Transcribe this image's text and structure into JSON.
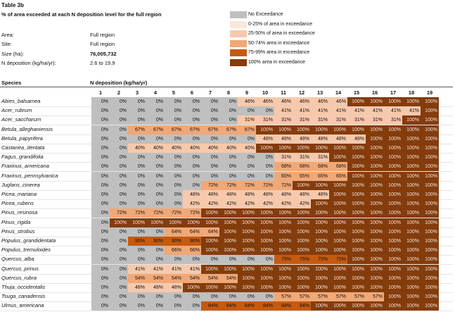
{
  "title": "Table 3b",
  "subtitle": "% of area  exceeded at each N deposition level for the full region",
  "info": [
    {
      "label": "Area:",
      "value": "Full region",
      "bold": false
    },
    {
      "label": "Site:",
      "value": "Full region",
      "bold": false
    },
    {
      "label": "Size (ha):",
      "value": "76,005,732",
      "bold": true
    },
    {
      "label": "N deposition  (kg/ha/yr):",
      "value": "2.6 to 19.9",
      "bold": false
    }
  ],
  "legend": [
    {
      "label": "No Exceedance",
      "color": "#bfbfbf"
    },
    {
      "label": "0-25% of area  in exceedance",
      "color": "#fbe6da"
    },
    {
      "label": "25-50% of area  in exceedance",
      "color": "#f7c9ac"
    },
    {
      "label": "50-74% area  in exceedance",
      "color": "#f0a877"
    },
    {
      "label": "75-99% area in exceedance",
      "color": "#c55a11"
    },
    {
      "label": "100% area  in exceedance",
      "color": "#843c0c"
    }
  ],
  "table": {
    "species_header": "Species",
    "ndep_header": "N deposition  (kg/ha/yr)",
    "columns": [
      "1",
      "2",
      "3",
      "4",
      "5",
      "6",
      "7",
      "8",
      "9",
      "10",
      "11",
      "12",
      "13",
      "14",
      "15",
      "16",
      "17",
      "18",
      "19"
    ],
    "rows": [
      {
        "species": "Abies_balsamea",
        "values": [
          0,
          0,
          0,
          0,
          0,
          0,
          0,
          0,
          46,
          46,
          46,
          46,
          46,
          46,
          100,
          100,
          100,
          100,
          100
        ]
      },
      {
        "species": "Acer_rubrum",
        "values": [
          0,
          0,
          0,
          0,
          0,
          0,
          0,
          0,
          0,
          0,
          41,
          41,
          41,
          41,
          41,
          41,
          41,
          41,
          100
        ]
      },
      {
        "species": "Acer_saccharum",
        "values": [
          0,
          0,
          0,
          0,
          0,
          0,
          0,
          0,
          31,
          31,
          31,
          31,
          31,
          31,
          31,
          31,
          31,
          100,
          100
        ]
      },
      {
        "species": "Betula_alleghaniensis",
        "values": [
          0,
          0,
          67,
          67,
          67,
          67,
          67,
          67,
          67,
          100,
          100,
          100,
          100,
          100,
          100,
          100,
          100,
          100,
          100
        ]
      },
      {
        "species": "Betula_papyrifera",
        "values": [
          0,
          0,
          0,
          0,
          0,
          0,
          0,
          0,
          0,
          48,
          48,
          48,
          48,
          48,
          48,
          100,
          100,
          100,
          100
        ]
      },
      {
        "species": "Castanea_dentata",
        "values": [
          0,
          0,
          40,
          40,
          40,
          40,
          40,
          40,
          40,
          100,
          100,
          100,
          100,
          100,
          100,
          100,
          100,
          100,
          100
        ]
      },
      {
        "species": "Fagus_grandifolia",
        "values": [
          0,
          0,
          0,
          0,
          0,
          0,
          0,
          0,
          0,
          0,
          31,
          31,
          31,
          100,
          100,
          100,
          100,
          100,
          100
        ]
      },
      {
        "species": "Fraxinus_americana",
        "values": [
          0,
          0,
          0,
          0,
          0,
          0,
          0,
          0,
          0,
          0,
          68,
          68,
          68,
          68,
          100,
          100,
          100,
          100,
          100
        ]
      },
      {
        "species": "Fraxinus_pennsylvanica",
        "values": [
          0,
          0,
          0,
          0,
          0,
          0,
          0,
          0,
          0,
          0,
          65,
          65,
          65,
          65,
          100,
          100,
          100,
          100,
          100
        ]
      },
      {
        "species": "Juglans_cinerea",
        "values": [
          0,
          0,
          0,
          0,
          0,
          0,
          72,
          72,
          72,
          72,
          72,
          100,
          100,
          100,
          100,
          100,
          100,
          100,
          100
        ]
      },
      {
        "species": "Picea_mariana",
        "values": [
          0,
          0,
          0,
          0,
          0,
          48,
          48,
          48,
          48,
          48,
          48,
          48,
          48,
          100,
          100,
          100,
          100,
          100,
          100
        ]
      },
      {
        "species": "Picea_rubens",
        "values": [
          0,
          0,
          0,
          0,
          0,
          42,
          42,
          42,
          42,
          42,
          42,
          42,
          100,
          100,
          100,
          100,
          100,
          100,
          100
        ]
      },
      {
        "species": "Pinus_resinosa",
        "values": [
          0,
          72,
          72,
          72,
          72,
          72,
          100,
          100,
          100,
          100,
          100,
          100,
          100,
          100,
          100,
          100,
          100,
          100,
          100
        ]
      },
      {
        "species": "Pinus_rigida",
        "values": [
          0,
          100,
          100,
          100,
          100,
          100,
          100,
          100,
          100,
          100,
          100,
          100,
          100,
          100,
          100,
          100,
          100,
          100,
          100
        ]
      },
      {
        "species": "Pinus_strobus",
        "values": [
          0,
          0,
          0,
          0,
          64,
          64,
          64,
          100,
          100,
          100,
          100,
          100,
          100,
          100,
          100,
          100,
          100,
          100,
          100
        ]
      },
      {
        "species": "Populus_grandidentata",
        "values": [
          0,
          0,
          90,
          90,
          90,
          90,
          100,
          100,
          100,
          100,
          100,
          100,
          100,
          100,
          100,
          100,
          100,
          100,
          100
        ]
      },
      {
        "species": "Populus_tremuloides",
        "values": [
          0,
          0,
          0,
          0,
          66,
          66,
          100,
          100,
          100,
          100,
          100,
          100,
          100,
          100,
          100,
          100,
          100,
          100,
          100
        ]
      },
      {
        "species": "Quercus_alba",
        "values": [
          0,
          0,
          0,
          0,
          0,
          0,
          0,
          0,
          0,
          0,
          75,
          75,
          75,
          75,
          100,
          100,
          100,
          100,
          100
        ]
      },
      {
        "species": "Quercus_prinus",
        "values": [
          0,
          0,
          41,
          41,
          41,
          41,
          100,
          100,
          100,
          100,
          100,
          100,
          100,
          100,
          100,
          100,
          100,
          100,
          100
        ]
      },
      {
        "species": "Quercus_rubra",
        "values": [
          0,
          0,
          54,
          54,
          54,
          54,
          54,
          54,
          100,
          100,
          100,
          100,
          100,
          100,
          100,
          100,
          100,
          100,
          100
        ]
      },
      {
        "species": "Thuja_occidentalis",
        "values": [
          0,
          0,
          48,
          48,
          48,
          100,
          100,
          100,
          100,
          100,
          100,
          100,
          100,
          100,
          100,
          100,
          100,
          100,
          100
        ]
      },
      {
        "species": "Tsuga_canadensis",
        "values": [
          0,
          0,
          0,
          0,
          0,
          0,
          0,
          0,
          0,
          0,
          57,
          57,
          57,
          57,
          57,
          57,
          100,
          100,
          100
        ]
      },
      {
        "species": "Ulmus_americana",
        "values": [
          0,
          0,
          0,
          0,
          0,
          0,
          84,
          84,
          84,
          84,
          84,
          84,
          100,
          100,
          100,
          100,
          100,
          100,
          100
        ]
      }
    ]
  }
}
